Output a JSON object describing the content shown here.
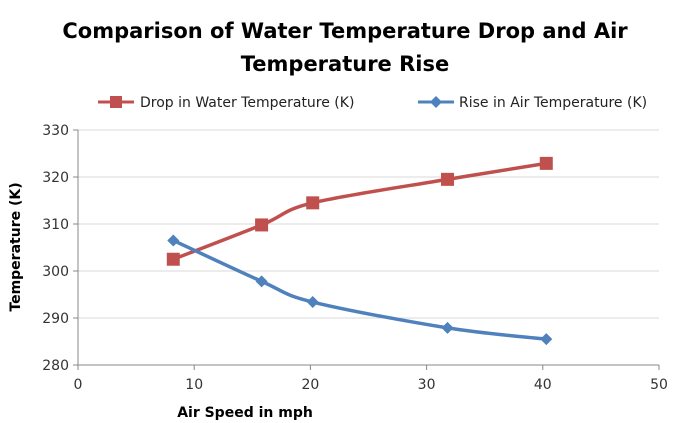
{
  "chart_data": {
    "type": "line",
    "title_lines": [
      "Comparison of Water Temperature Drop and  Air",
      "Temperature Rise"
    ],
    "xlabel": "Air Speed in mph",
    "ylabel": "Temperature (K)",
    "xlim": [
      0,
      50
    ],
    "ylim": [
      280,
      330
    ],
    "x_ticks": [
      "0",
      "10",
      "20",
      "30",
      "40",
      "50"
    ],
    "y_ticks": [
      "280",
      "290",
      "300",
      "310",
      "320",
      "330"
    ],
    "grid": "horizontal",
    "legend_position": "top",
    "series": [
      {
        "name": "Drop in Water Temperature (K)",
        "color": "#C0504D",
        "marker": "square",
        "points": [
          {
            "x": 8.2,
            "y": 302.5
          },
          {
            "x": 15.8,
            "y": 309.8
          },
          {
            "x": 20.2,
            "y": 314.5
          },
          {
            "x": 31.8,
            "y": 319.5
          },
          {
            "x": 40.3,
            "y": 322.9
          }
        ]
      },
      {
        "name": "Rise in Air Temperature (K)",
        "color": "#4F81BD",
        "marker": "diamond",
        "points": [
          {
            "x": 8.2,
            "y": 306.5
          },
          {
            "x": 15.8,
            "y": 297.8
          },
          {
            "x": 20.2,
            "y": 293.4
          },
          {
            "x": 31.8,
            "y": 287.9
          },
          {
            "x": 40.3,
            "y": 285.5
          }
        ]
      }
    ]
  }
}
